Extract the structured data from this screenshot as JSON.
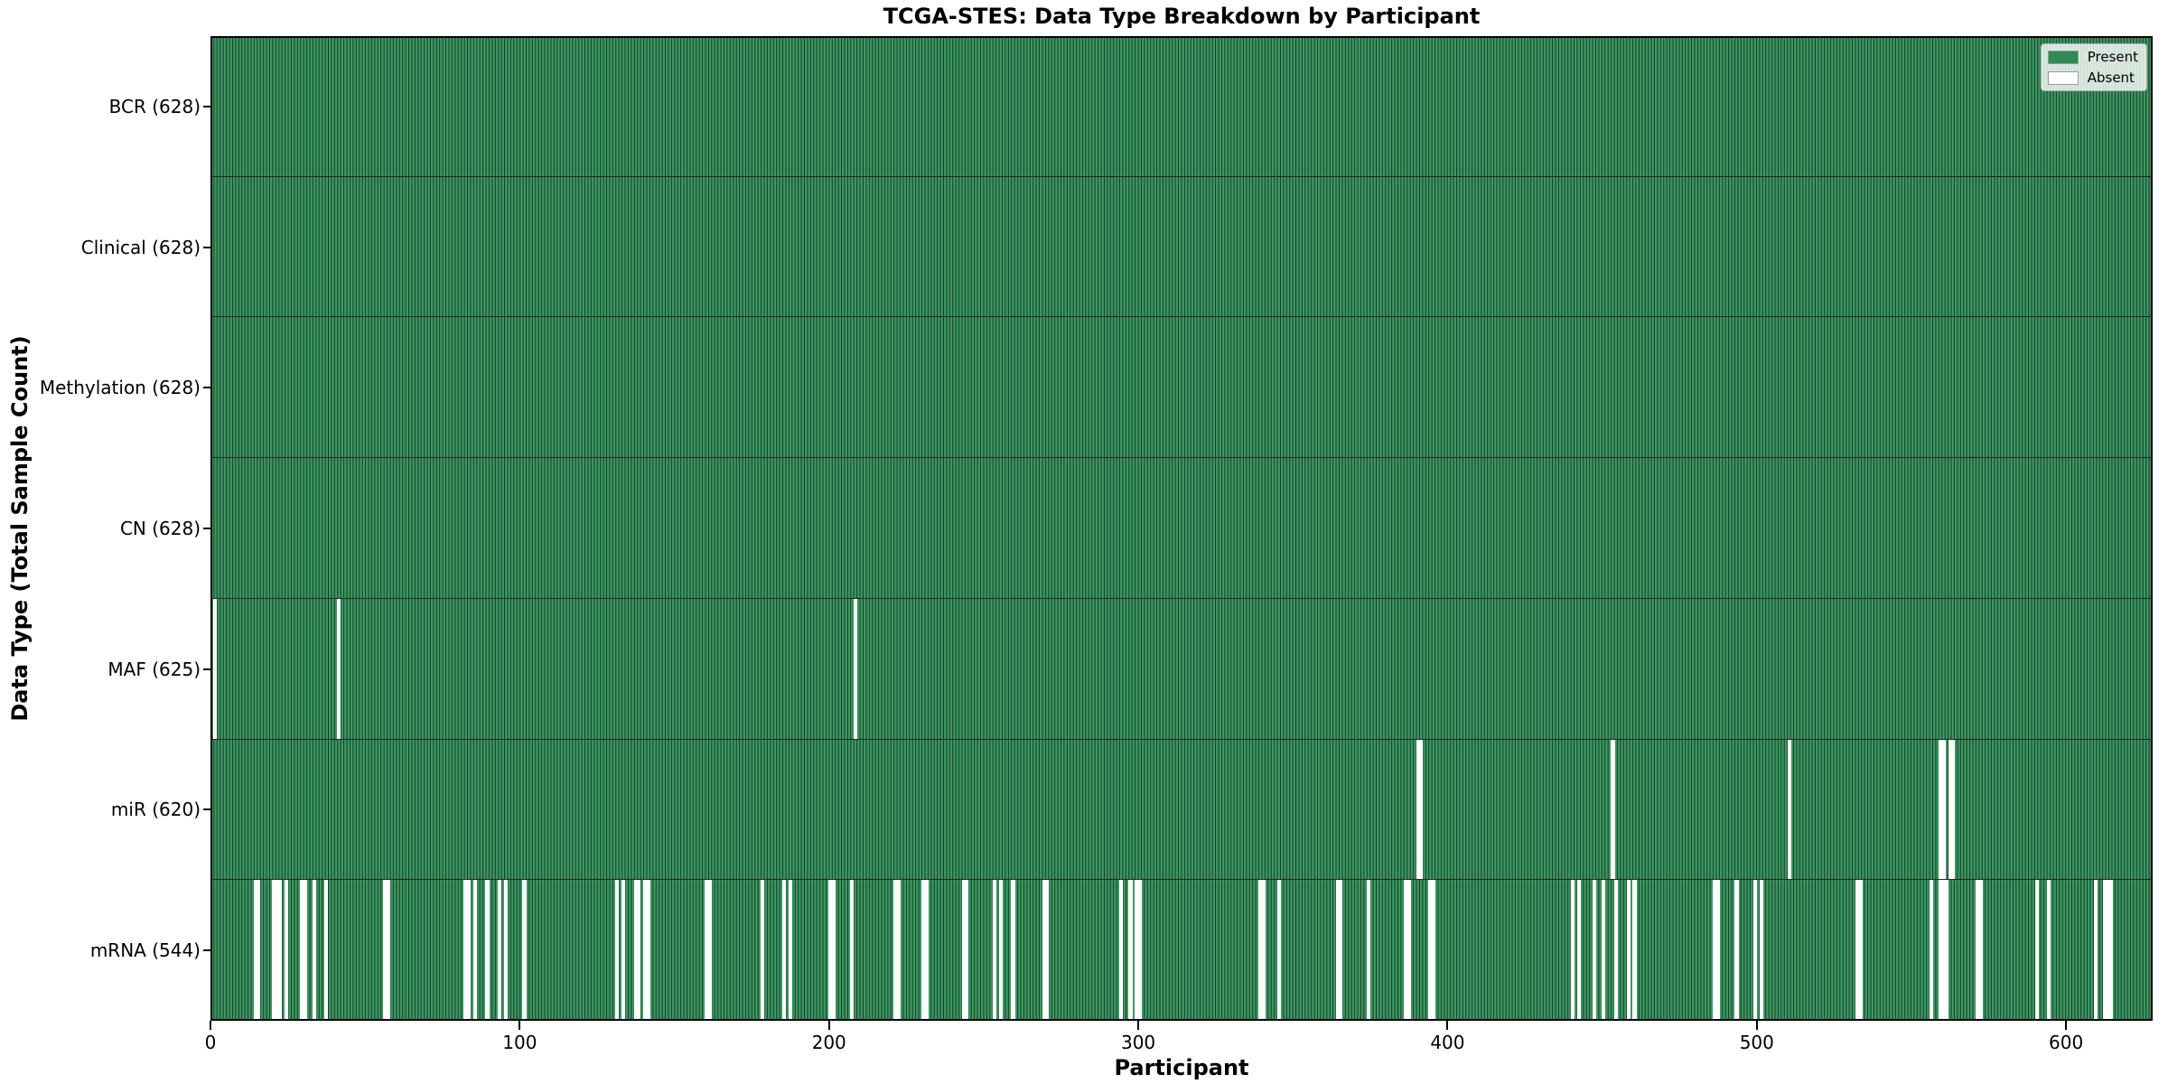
{
  "chart": {
    "title": "TCGA-STES: Data Type Breakdown by Participant",
    "xlabel": "Participant",
    "ylabel": "Data Type (Total Sample Count)"
  },
  "legend": {
    "present_label": "Present",
    "absent_label": "Absent"
  },
  "colors": {
    "present_fill": "#3c9861",
    "present_edge": "#143c28",
    "absent": "#ffffff",
    "legend_present_swatch": "#2e8b57",
    "legend_absent_swatch": "#ffffff",
    "axis": "#000000"
  },
  "chart_data": {
    "type": "heatmap",
    "title": "TCGA-STES: Data Type Breakdown by Participant",
    "xlabel": "Participant",
    "ylabel": "Data Type (Total Sample Count)",
    "legend_entries": [
      "Present",
      "Absent"
    ],
    "legend_position": "upper right",
    "n_participants": 628,
    "x_ticks": [
      0,
      100,
      200,
      300,
      400,
      500,
      600
    ],
    "x_range": [
      0,
      628
    ],
    "grid": false,
    "rows": [
      {
        "label": "BCR",
        "present_count": 628,
        "tick_label": "BCR (628)",
        "absent_participants": []
      },
      {
        "label": "Clinical",
        "present_count": 628,
        "tick_label": "Clinical (628)",
        "absent_participants": []
      },
      {
        "label": "Methylation",
        "present_count": 628,
        "tick_label": "Methylation (628)",
        "absent_participants": []
      },
      {
        "label": "CN",
        "present_count": 628,
        "tick_label": "CN (628)",
        "absent_participants": []
      },
      {
        "label": "MAF",
        "present_count": 625,
        "tick_label": "MAF (625)",
        "absent_participants": [
          1,
          41,
          208
        ]
      },
      {
        "label": "miR",
        "present_count": 620,
        "tick_label": "miR (620)",
        "absent_participants": [
          390,
          391,
          453,
          510,
          559,
          560,
          562,
          563
        ]
      },
      {
        "label": "mRNA",
        "present_count": 544,
        "tick_label": "mRNA (544)",
        "absent_participants": [
          14,
          15,
          20,
          21,
          22,
          24,
          29,
          30,
          33,
          37,
          56,
          57,
          82,
          83,
          85,
          89,
          93,
          95,
          101,
          131,
          133,
          137,
          138,
          140,
          141,
          160,
          161,
          178,
          185,
          187,
          200,
          201,
          207,
          221,
          222,
          230,
          231,
          243,
          244,
          253,
          255,
          259,
          269,
          270,
          294,
          297,
          299,
          300,
          339,
          340,
          345,
          364,
          365,
          374,
          386,
          387,
          394,
          395,
          440,
          442,
          447,
          450,
          454,
          458,
          460,
          486,
          487,
          493,
          499,
          501,
          532,
          533,
          556,
          559,
          560,
          561,
          571,
          572,
          590,
          594,
          609,
          612,
          613,
          614
        ]
      }
    ]
  }
}
